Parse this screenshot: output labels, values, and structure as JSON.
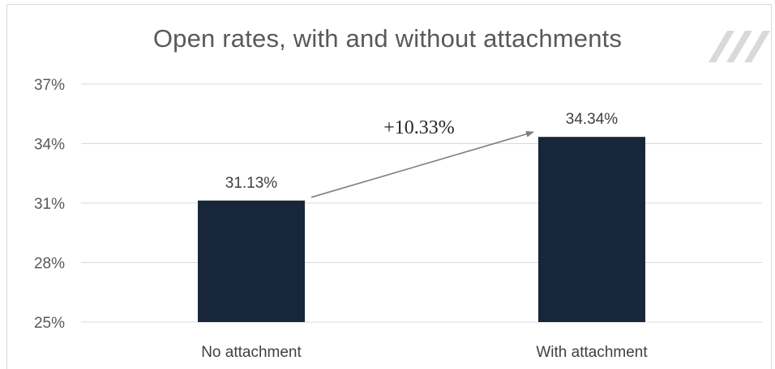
{
  "chart_data": {
    "type": "bar",
    "title": "Open rates, with and without attachments",
    "categories": [
      "No attachment",
      "With attachment"
    ],
    "values": [
      31.13,
      34.34
    ],
    "data_labels": [
      "31.13%",
      "34.34%"
    ],
    "ylim": [
      25,
      37
    ],
    "yticks": [
      25,
      28,
      31,
      34,
      37
    ],
    "ytick_labels": [
      "25%",
      "28%",
      "31%",
      "34%",
      "37%"
    ],
    "xlabel": "",
    "ylabel": "",
    "grid": true,
    "legend": "none",
    "annotation": {
      "text": "+10.33%",
      "from_category": 0,
      "to_category": 1
    },
    "colors": {
      "bar": "#17263a",
      "grid": "#d9d9d9",
      "arrow": "#7f7f7f",
      "logo": "#d9d9d9"
    }
  },
  "logo": {
    "icon": "diagonal-stripes-logo"
  }
}
